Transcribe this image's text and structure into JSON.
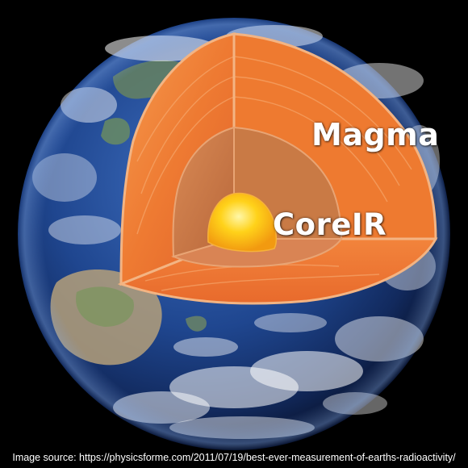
{
  "labels": {
    "magma": "Magma",
    "core": "CoreIR"
  },
  "caption": "Image source: https://physicsforme.com/2011/07/19/best-ever-measurement-of-earths-radioactivity/",
  "colors": {
    "background": "#000000",
    "ocean": "#1d3f85",
    "mantle_outer": "#f07a2e",
    "mantle_inner": "#c8743f",
    "core": "#ffd21a",
    "label_text": "#ffffff"
  }
}
